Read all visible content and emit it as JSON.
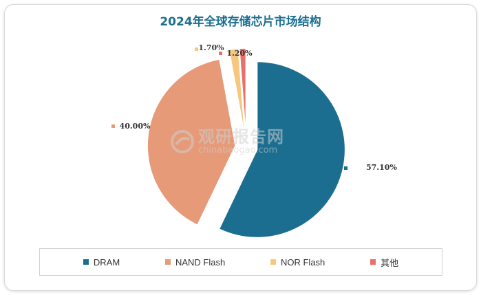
{
  "chart_data": {
    "type": "pie",
    "title": "2024年全球存储芯片市场结构",
    "categories": [
      "DRAM",
      "NAND Flash",
      "NOR Flash",
      "其他"
    ],
    "values": [
      57.1,
      40.0,
      1.7,
      1.2
    ],
    "value_labels": [
      "57.10%",
      "40.00%",
      "1.70%",
      "1.20%"
    ],
    "colors": [
      "#1b6e8f",
      "#e69a78",
      "#f8c77e",
      "#e8706a"
    ],
    "exploded": true,
    "legend_position": "bottom"
  },
  "watermark": {
    "text": "观研报告网",
    "url_text": "chinabaogao.com"
  }
}
